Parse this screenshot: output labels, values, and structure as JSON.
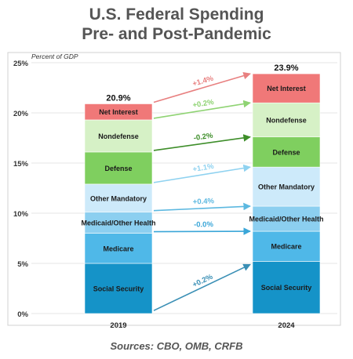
{
  "title_line1": "U.S. Federal Spending",
  "title_line2": "Pre- and Post-Pandemic",
  "source": "Sources: CBO, OMB, CRFB",
  "chart_data": {
    "type": "bar",
    "stacked": true,
    "ylabel": "Percent of GDP",
    "ylim": [
      0,
      25
    ],
    "yticks": [
      0,
      5,
      10,
      15,
      20,
      25
    ],
    "ytick_labels": [
      "0%",
      "5%",
      "10%",
      "15%",
      "20%",
      "25%"
    ],
    "grid": true,
    "categories": [
      "2019",
      "2024"
    ],
    "totals": [
      "20.9%",
      "23.9%"
    ],
    "series": [
      {
        "name": "Social Security",
        "color": "#1593c8",
        "values": [
          5.0,
          5.2
        ]
      },
      {
        "name": "Medicare",
        "color": "#4fb8e8",
        "values": [
          3.0,
          3.0
        ]
      },
      {
        "name": "Medicaid/Other Health",
        "color": "#8ccff0",
        "values": [
          2.1,
          2.5
        ]
      },
      {
        "name": "Other Mandatory",
        "color": "#cdeafa",
        "values": [
          2.8,
          3.9
        ]
      },
      {
        "name": "Defense",
        "color": "#7fcf5f",
        "values": [
          3.2,
          3.0
        ]
      },
      {
        "name": "Nondefense",
        "color": "#d6f1c6",
        "values": [
          3.2,
          3.4
        ]
      },
      {
        "name": "Net Interest",
        "color": "#f07878",
        "values": [
          1.6,
          2.9
        ]
      }
    ],
    "changes": [
      {
        "label": "+0.2%",
        "color": "#3a8fb5"
      },
      {
        "label": "-0.0%",
        "color": "#3aa6d8"
      },
      {
        "label": "+0.4%",
        "color": "#5cb8e0"
      },
      {
        "label": "+1.1%",
        "color": "#8fd2f0"
      },
      {
        "label": "-0.2%",
        "color": "#3e8e2a"
      },
      {
        "label": "+0.2%",
        "color": "#8fd373"
      },
      {
        "label": "+1.4%",
        "color": "#e88080"
      }
    ]
  }
}
